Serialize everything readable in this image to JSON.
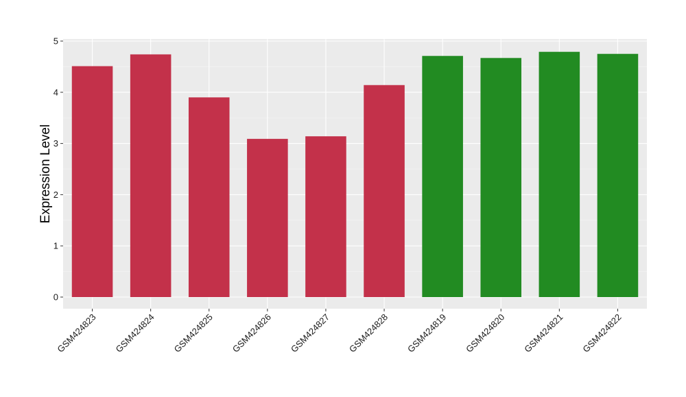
{
  "chart_data": {
    "type": "bar",
    "title": "",
    "xlabel": "",
    "ylabel": "Expression Level",
    "categories": [
      "GSM424823",
      "GSM424824",
      "GSM424825",
      "GSM424826",
      "GSM424827",
      "GSM424828",
      "GSM424819",
      "GSM424820",
      "GSM424821",
      "GSM424822"
    ],
    "values": [
      4.51,
      4.74,
      3.9,
      3.09,
      3.14,
      4.14,
      4.71,
      4.67,
      4.79,
      4.75
    ],
    "bar_colors": [
      "#C3314A",
      "#C3314A",
      "#C3314A",
      "#C3314A",
      "#C3314A",
      "#C3314A",
      "#228B22",
      "#228B22",
      "#228B22",
      "#228B22"
    ],
    "ylim": [
      0,
      5
    ],
    "yticks": [
      "0",
      "1",
      "2",
      "3",
      "4",
      "5"
    ],
    "grid": true,
    "panel_background": "#EBEBEB",
    "legend": "none"
  }
}
